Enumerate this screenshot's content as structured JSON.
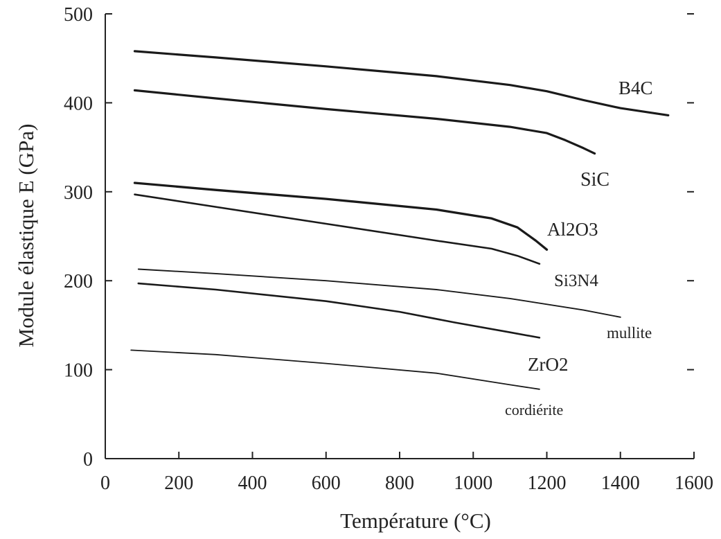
{
  "chart_data": {
    "type": "line",
    "xlabel": "Température (°C)",
    "ylabel": "Module élastique E (GPa)",
    "xlim": [
      0,
      1600
    ],
    "ylim": [
      0,
      500
    ],
    "x_ticks": [
      "0",
      "200",
      "400",
      "600",
      "800",
      "1000",
      "1200",
      "1400",
      "1600"
    ],
    "y_ticks": [
      "0",
      "100",
      "200",
      "300",
      "400",
      "500"
    ],
    "grid": false,
    "legend": "inline labels",
    "series": [
      {
        "name": "B4C",
        "x": [
          80,
          300,
          600,
          900,
          1100,
          1200,
          1300,
          1400,
          1530
        ],
        "y": [
          458,
          451,
          441,
          430,
          420,
          413,
          403,
          394,
          386
        ]
      },
      {
        "name": "SiC",
        "x": [
          80,
          300,
          600,
          900,
          1100,
          1200,
          1250,
          1300,
          1330
        ],
        "y": [
          414,
          405,
          393,
          382,
          373,
          366,
          358,
          349,
          343
        ]
      },
      {
        "name": "Al2O3",
        "x": [
          80,
          300,
          600,
          900,
          1050,
          1120,
          1170,
          1200
        ],
        "y": [
          310,
          302,
          292,
          280,
          270,
          260,
          245,
          235
        ]
      },
      {
        "name": "Si3N4",
        "x": [
          80,
          300,
          600,
          900,
          1050,
          1120,
          1180
        ],
        "y": [
          297,
          283,
          264,
          245,
          236,
          228,
          219
        ]
      },
      {
        "name": "mullite",
        "x": [
          90,
          300,
          600,
          900,
          1100,
          1300,
          1400
        ],
        "y": [
          213,
          208,
          200,
          190,
          180,
          167,
          159
        ]
      },
      {
        "name": "ZrO2",
        "x": [
          90,
          300,
          600,
          800,
          950,
          1100,
          1180
        ],
        "y": [
          197,
          190,
          177,
          165,
          153,
          142,
          136
        ]
      },
      {
        "name": "cordiérite",
        "x": [
          70,
          300,
          600,
          900,
          1100,
          1180
        ],
        "y": [
          122,
          117,
          107,
          96,
          83,
          78
        ]
      }
    ]
  }
}
